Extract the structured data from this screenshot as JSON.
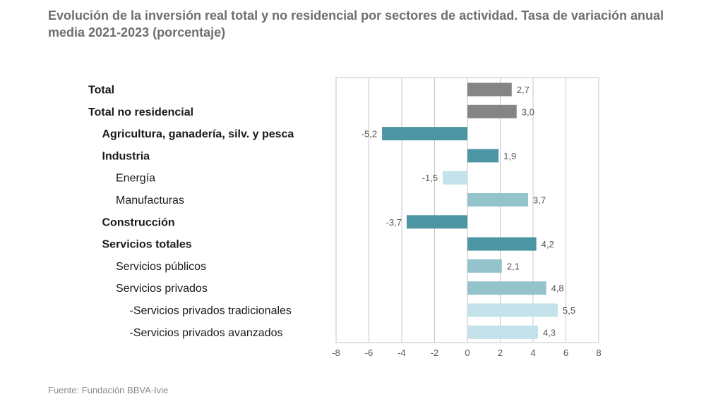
{
  "title": "Evolución de la inversión real total y no residencial por sectores de actividad. Tasa de variación anual media 2021-2023 (porcentaje)",
  "source": "Fuente: Fundación BBVA-Ivie",
  "colors": {
    "gray": "#858585",
    "teal_dark": "#4e95a4",
    "teal_mid": "#95c3cc",
    "teal_light": "#c3e2e9",
    "grid": "#c6c6c6"
  },
  "chart_data": {
    "type": "bar",
    "orientation": "horizontal",
    "title": "Evolución de la inversión real total y no residencial por sectores de actividad. Tasa de variación anual media 2021-2023 (porcentaje)",
    "xlabel": "",
    "ylabel": "",
    "xlim": [
      -8,
      8
    ],
    "xticks": [
      "-8",
      "-6",
      "-4",
      "-2",
      "0",
      "2",
      "4",
      "6",
      "8"
    ],
    "grid": true,
    "categories": [
      "Total",
      "Total no residencial",
      "Agricultura, ganadería, silv. y pesca",
      "Industria",
      "Energía",
      "Manufacturas",
      "Construcción",
      "Servicios totales",
      "Servicios públicos",
      "Servicios privados",
      "-Servicios privados tradicionales",
      "-Servicios privados avanzados"
    ],
    "values": [
      2.7,
      3.0,
      -5.2,
      1.9,
      -1.5,
      3.7,
      -3.7,
      4.2,
      2.1,
      4.8,
      5.5,
      4.3
    ],
    "value_labels": [
      "2,7",
      "3,0",
      "-5,2",
      "1,9",
      "-1,5",
      "3,7",
      "-3,7",
      "4,2",
      "2,1",
      "4,8",
      "5,5",
      "4,3"
    ],
    "levels": [
      0,
      0,
      1,
      1,
      2,
      2,
      1,
      1,
      2,
      2,
      3,
      3
    ],
    "bold": [
      true,
      true,
      true,
      true,
      false,
      false,
      true,
      true,
      false,
      false,
      false,
      false
    ],
    "bar_colors": [
      "gray",
      "gray",
      "teal_dark",
      "teal_dark",
      "teal_light",
      "teal_mid",
      "teal_dark",
      "teal_dark",
      "teal_mid",
      "teal_mid",
      "teal_light",
      "teal_light"
    ]
  }
}
